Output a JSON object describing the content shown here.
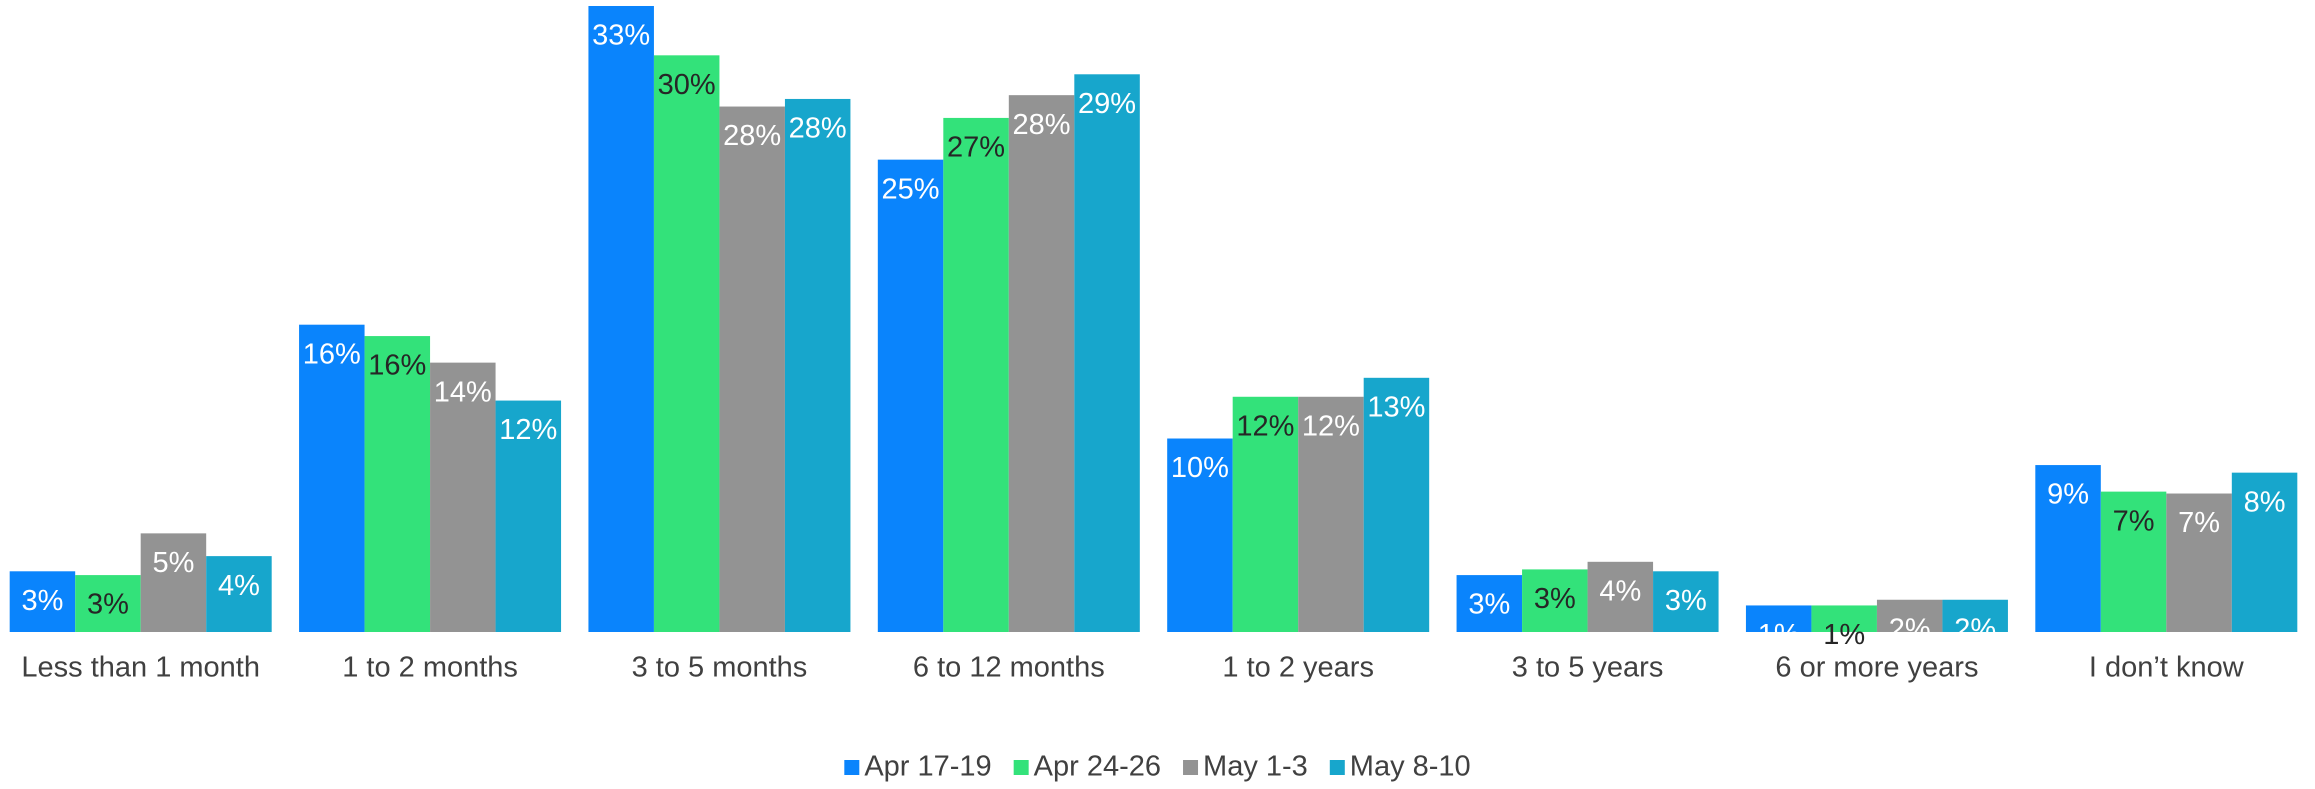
{
  "chart_data": {
    "type": "bar",
    "categories": [
      "Less than 1 month",
      "1 to 2 months",
      "3 to 5 months",
      "6 to 12 months",
      "1 to 2 years",
      "3 to 5 years",
      "6 or more years",
      "I don’t know"
    ],
    "series": [
      {
        "name": "Apr 17-19",
        "color": "#0a84fc",
        "label_color": "#ffffff",
        "values": [
          3.2,
          16.2,
          33.0,
          24.9,
          10.2,
          3.0,
          1.4,
          8.8
        ],
        "value_labels": [
          "3%",
          "16%",
          "33%",
          "25%",
          "10%",
          "3%",
          "1%",
          "9%"
        ]
      },
      {
        "name": "Apr 24-26",
        "color": "#33e27a",
        "label_color": "#262626",
        "values": [
          3.0,
          15.6,
          30.4,
          27.1,
          12.4,
          3.3,
          1.4,
          7.4
        ],
        "value_labels": [
          "3%",
          "16%",
          "30%",
          "27%",
          "12%",
          "3%",
          "1%",
          "7%"
        ]
      },
      {
        "name": "May 1-3",
        "color": "#939393",
        "label_color": "#ffffff",
        "values": [
          5.2,
          14.2,
          27.7,
          28.3,
          12.4,
          3.7,
          1.7,
          7.3
        ],
        "value_labels": [
          "5%",
          "14%",
          "28%",
          "28%",
          "12%",
          "4%",
          "2%",
          "7%"
        ]
      },
      {
        "name": "May 8-10",
        "color": "#17a6cc",
        "label_color": "#ffffff",
        "values": [
          4.0,
          12.2,
          28.1,
          29.4,
          13.4,
          3.2,
          1.7,
          8.4
        ],
        "value_labels": [
          "4%",
          "12%",
          "28%",
          "29%",
          "13%",
          "3%",
          "2%",
          "8%"
        ]
      }
    ]
  }
}
